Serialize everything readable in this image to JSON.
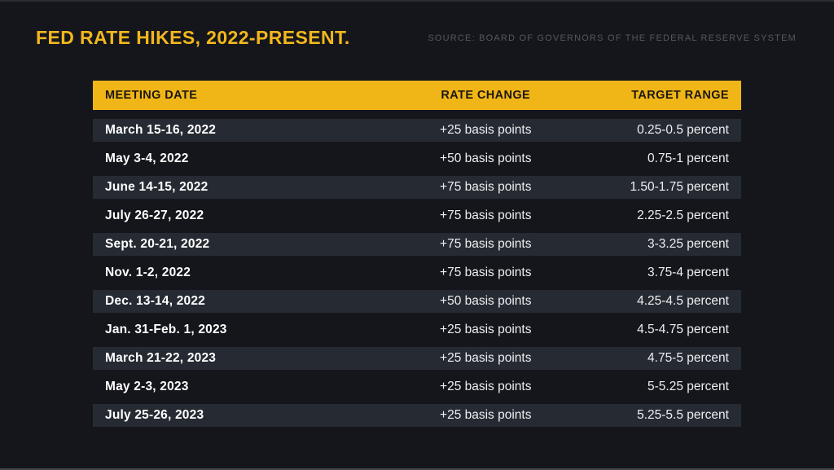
{
  "header": {
    "title": "FED RATE HIKES, 2022-PRESENT.",
    "source": "SOURCE: BOARD OF GOVERNORS OF THE FEDERAL RESERVE SYSTEM"
  },
  "colors": {
    "background": "#15161c",
    "accent_yellow": "#f0b618",
    "title_yellow": "#f2b71c",
    "row_highlight": "#262b33",
    "row_text": "#edeef0",
    "date_text": "#ffffff",
    "header_text": "#1c1711",
    "source_text": "#55585f"
  },
  "table": {
    "columns": [
      "MEETING DATE",
      "RATE CHANGE",
      "TARGET RANGE"
    ],
    "rows": [
      {
        "date": "March 15-16, 2022",
        "change": "+25 basis points",
        "range": "0.25-0.5 percent",
        "highlighted": true
      },
      {
        "date": "May 3-4, 2022",
        "change": "+50 basis points",
        "range": "0.75-1 percent",
        "highlighted": false
      },
      {
        "date": "June 14-15, 2022",
        "change": "+75 basis points",
        "range": "1.50-1.75 percent",
        "highlighted": true
      },
      {
        "date": "July 26-27, 2022",
        "change": "+75 basis points",
        "range": "2.25-2.5 percent",
        "highlighted": false
      },
      {
        "date": "Sept. 20-21, 2022",
        "change": "+75 basis points",
        "range": "3-3.25 percent",
        "highlighted": true
      },
      {
        "date": "Nov. 1-2, 2022",
        "change": "+75 basis points",
        "range": "3.75-4 percent",
        "highlighted": false
      },
      {
        "date": "Dec. 13-14, 2022",
        "change": "+50 basis points",
        "range": "4.25-4.5 percent",
        "highlighted": true
      },
      {
        "date": "Jan. 31-Feb. 1, 2023",
        "change": "+25 basis points",
        "range": "4.5-4.75 percent",
        "highlighted": false
      },
      {
        "date": "March 21-22, 2023",
        "change": "+25 basis points",
        "range": "4.75-5 percent",
        "highlighted": true
      },
      {
        "date": "May 2-3, 2023",
        "change": "+25 basis points",
        "range": "5-5.25 percent",
        "highlighted": false
      },
      {
        "date": "July 25-26, 2023",
        "change": "+25 basis points",
        "range": "5.25-5.5 percent",
        "highlighted": true
      }
    ]
  },
  "chart_data": {
    "type": "table",
    "title": "FED RATE HIKES, 2022-PRESENT.",
    "source": "SOURCE: BOARD OF GOVERNORS OF THE FEDERAL RESERVE SYSTEM",
    "columns": [
      "MEETING DATE",
      "RATE CHANGE",
      "TARGET RANGE"
    ],
    "rows": [
      [
        "March 15-16, 2022",
        "+25 basis points",
        "0.25-0.5 percent"
      ],
      [
        "May 3-4, 2022",
        "+50 basis points",
        "0.75-1 percent"
      ],
      [
        "June 14-15, 2022",
        "+75 basis points",
        "1.50-1.75 percent"
      ],
      [
        "July 26-27, 2022",
        "+75 basis points",
        "2.25-2.5 percent"
      ],
      [
        "Sept. 20-21, 2022",
        "+75 basis points",
        "3-3.25 percent"
      ],
      [
        "Nov. 1-2, 2022",
        "+75 basis points",
        "3.75-4 percent"
      ],
      [
        "Dec. 13-14, 2022",
        "+50 basis points",
        "4.25-4.5 percent"
      ],
      [
        "Jan. 31-Feb. 1, 2023",
        "+25 basis points",
        "4.5-4.75 percent"
      ],
      [
        "March 21-22, 2023",
        "+25 basis points",
        "4.75-5 percent"
      ],
      [
        "May 2-3, 2023",
        "+25 basis points",
        "5-5.25 percent"
      ],
      [
        "July 25-26, 2023",
        "+25 basis points",
        "5.25-5.5 percent"
      ]
    ],
    "rate_change_basis_points": [
      25,
      50,
      75,
      75,
      75,
      75,
      50,
      25,
      25,
      25,
      25
    ],
    "target_range_upper_percent": [
      0.5,
      1,
      1.75,
      2.5,
      3.25,
      4,
      4.5,
      4.75,
      5,
      5.25,
      5.5
    ]
  }
}
